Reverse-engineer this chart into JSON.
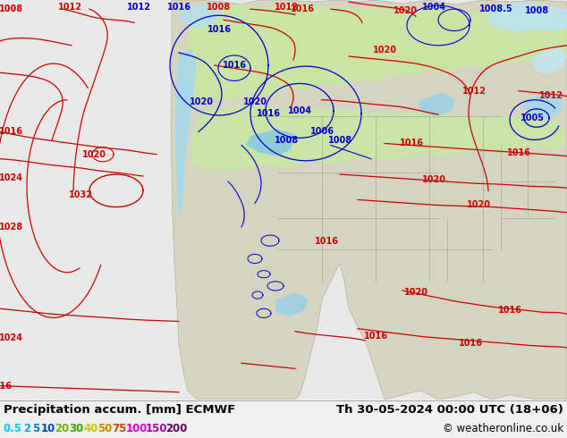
{
  "title_left": "Precipitation accum. [mm] ECMWF",
  "title_right": "Th 30-05-2024 00:00 UTC (18+06)",
  "copyright": "© weatheronline.co.uk",
  "legend_values": [
    "0.5",
    "2",
    "5",
    "10",
    "20",
    "30",
    "40",
    "50",
    "75",
    "100",
    "150",
    "200"
  ],
  "legend_colors": [
    "#96e4f5",
    "#5bcdee",
    "#00a9e0",
    "#0070c0",
    "#92d050",
    "#00b050",
    "#ffff00",
    "#ffc000",
    "#ff0000",
    "#ff00ff",
    "#cc00cc",
    "#660066"
  ],
  "background_color": "#f0f0f0",
  "ocean_color": "#e8f4f8",
  "land_color": "#d8d8c8",
  "precip_light_green": "#c8e8a0",
  "precip_light_blue": "#a8d8f0",
  "precip_med_blue": "#60c0e8",
  "title_fontsize": 9.5,
  "legend_fontsize": 8.5,
  "copyright_fontsize": 8.5,
  "fig_width": 6.34,
  "fig_height": 4.9,
  "dpi": 100
}
